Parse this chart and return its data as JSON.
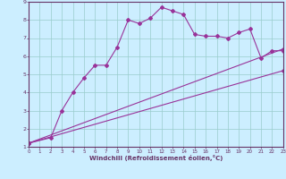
{
  "xlabel": "Windchill (Refroidissement éolien,°C)",
  "bg_color": "#cceeff",
  "line_color": "#993399",
  "grid_color": "#99cccc",
  "spine_color": "#663366",
  "xlim": [
    0,
    23
  ],
  "ylim": [
    1,
    9
  ],
  "xticks": [
    0,
    1,
    2,
    3,
    4,
    5,
    6,
    7,
    8,
    9,
    10,
    11,
    12,
    13,
    14,
    15,
    16,
    17,
    18,
    19,
    20,
    21,
    22,
    23
  ],
  "yticks": [
    1,
    2,
    3,
    4,
    5,
    6,
    7,
    8,
    9
  ],
  "line1_x": [
    0,
    2,
    3,
    4,
    5,
    6,
    7,
    8,
    9,
    10,
    11,
    12,
    13,
    14,
    15,
    16,
    17,
    18,
    19,
    20,
    21,
    22,
    23
  ],
  "line1_y": [
    1.2,
    1.5,
    3.0,
    4.0,
    4.8,
    5.5,
    5.5,
    6.5,
    8.0,
    7.8,
    8.1,
    8.7,
    8.5,
    8.3,
    7.2,
    7.1,
    7.1,
    7.0,
    7.3,
    7.5,
    5.9,
    6.3,
    6.3
  ],
  "line2_x": [
    0,
    23
  ],
  "line2_y": [
    1.2,
    6.4
  ],
  "line3_x": [
    0,
    23
  ],
  "line3_y": [
    1.2,
    5.2
  ]
}
